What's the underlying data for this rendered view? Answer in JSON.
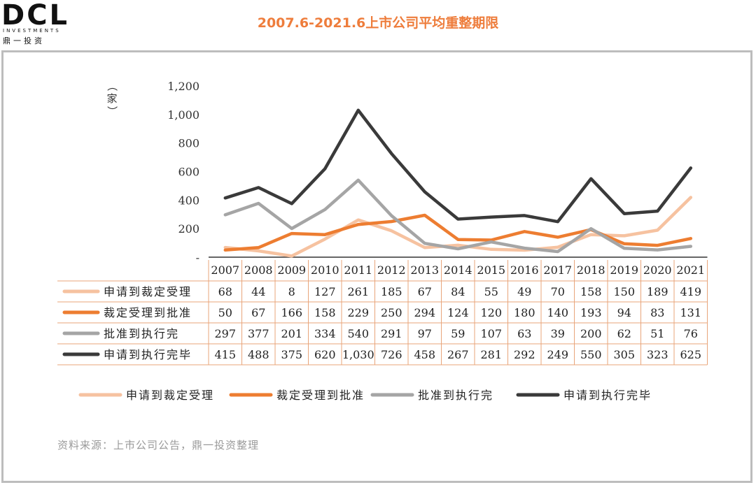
{
  "header": {
    "logo_mark": "DCL",
    "logo_sub": "INVESTMENTS",
    "logo_cn": "鼎一投资",
    "title": "2007.6-2021.6上市公司平均重整期限"
  },
  "source_note": "资料来源：上市公司公告，鼎一投资整理",
  "chart_data": {
    "type": "line",
    "ylabel": "（家）",
    "ylim": [
      0,
      1200
    ],
    "yticks": [
      0,
      200,
      400,
      600,
      800,
      1000,
      1200
    ],
    "ytick_labels": [
      "-",
      "200",
      "400",
      "600",
      "800",
      "1,000",
      "1,200"
    ],
    "categories": [
      "2007",
      "2008",
      "2009",
      "2010",
      "2011",
      "2012",
      "2013",
      "2014",
      "2015",
      "2016",
      "2017",
      "2018",
      "2019",
      "2020",
      "2021"
    ],
    "series": [
      {
        "name": "申请到裁定受理",
        "color": "#f6c2a0",
        "values": [
          68,
          44,
          8,
          127,
          261,
          185,
          67,
          84,
          55,
          49,
          70,
          158,
          150,
          189,
          419
        ],
        "labels": [
          "68",
          "44",
          "8",
          "127",
          "261",
          "185",
          "67",
          "84",
          "55",
          "49",
          "70",
          "158",
          "150",
          "189",
          "419"
        ]
      },
      {
        "name": "裁定受理到批准",
        "color": "#ed7d31",
        "values": [
          50,
          67,
          166,
          158,
          229,
          250,
          294,
          124,
          120,
          180,
          140,
          193,
          94,
          83,
          131
        ],
        "labels": [
          "50",
          "67",
          "166",
          "158",
          "229",
          "250",
          "294",
          "124",
          "120",
          "180",
          "140",
          "193",
          "94",
          "83",
          "131"
        ]
      },
      {
        "name": "批准到执行完",
        "color": "#a5a5a5",
        "values": [
          297,
          377,
          201,
          334,
          540,
          291,
          97,
          59,
          107,
          63,
          39,
          200,
          62,
          51,
          76
        ],
        "labels": [
          "297",
          "377",
          "201",
          "334",
          "540",
          "291",
          "97",
          "59",
          "107",
          "63",
          "39",
          "200",
          "62",
          "51",
          "76"
        ]
      },
      {
        "name": "申请到执行完毕",
        "color": "#3a3a3a",
        "values": [
          415,
          488,
          375,
          620,
          1030,
          726,
          458,
          267,
          281,
          292,
          249,
          550,
          305,
          323,
          625
        ],
        "labels": [
          "415",
          "488",
          "375",
          "620",
          "1,030",
          "726",
          "458",
          "267",
          "281",
          "292",
          "249",
          "550",
          "305",
          "323",
          "625"
        ]
      }
    ],
    "grid": false,
    "legend_position": "bottom"
  }
}
